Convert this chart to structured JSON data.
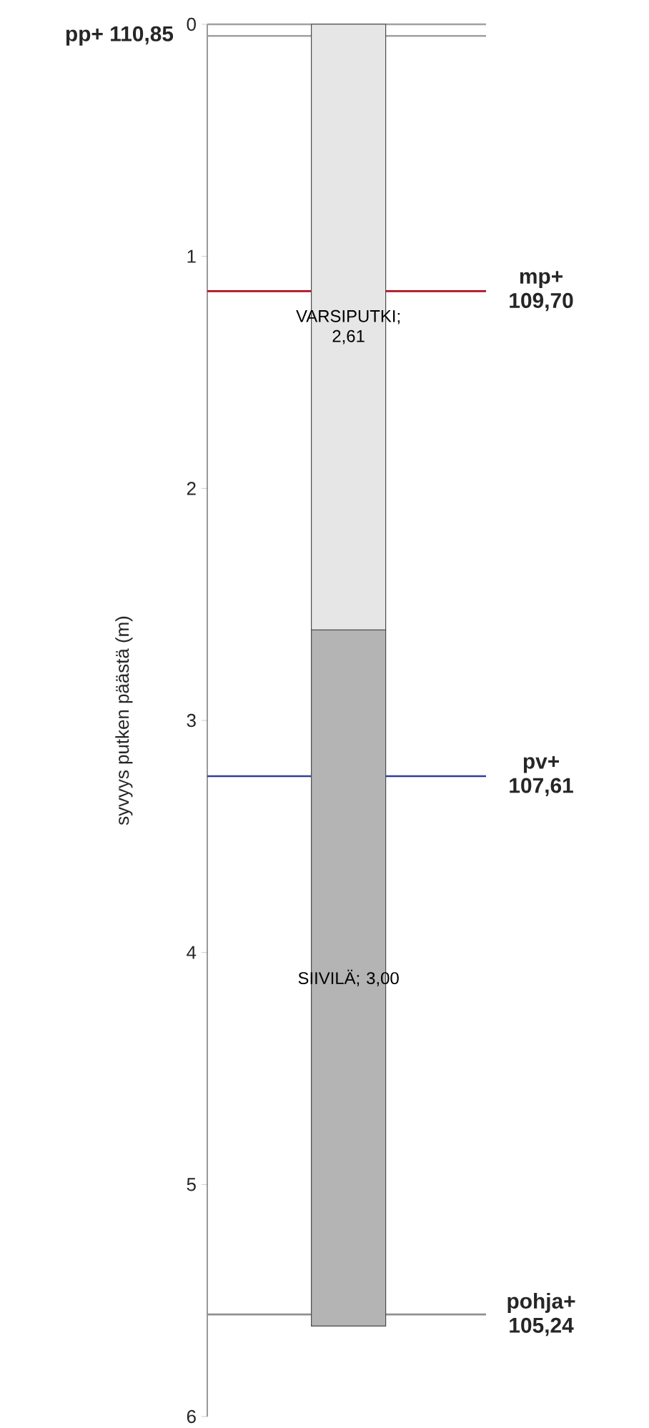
{
  "chart_data": {
    "type": "bar",
    "stacked": true,
    "ylabel": "syvyys putken päästä (m)",
    "categories": [
      null
    ],
    "series": [
      {
        "color": "#e6e6e6",
        "values": [
          2.61
        ],
        "value_labels": [
          "VARSIPUTKI; 2,61"
        ]
      },
      {
        "color": "#b4b4b4",
        "values": [
          3.0
        ],
        "value_labels": [
          "SIIVILÄ; 3,00"
        ]
      }
    ],
    "ylim": [
      6,
      0
    ],
    "yticks": [
      0,
      1,
      2,
      3,
      4,
      5,
      6
    ],
    "ref_lines": [
      {
        "axis": "y",
        "value": 0,
        "color": "#a0a0a0"
      },
      {
        "axis": "y",
        "value": 0.05,
        "label": "pp+ 110,85",
        "color": "#a0a0a0"
      },
      {
        "axis": "y",
        "value": 1.15,
        "label": "mp+ 109,70",
        "color": "#b01020"
      },
      {
        "axis": "y",
        "value": 3.24,
        "label": "pv+ 107,61",
        "color": "#3040a0"
      },
      {
        "axis": "y",
        "value": 5.56,
        "label": "pohja+ 105,24",
        "color": "#909090"
      }
    ]
  }
}
